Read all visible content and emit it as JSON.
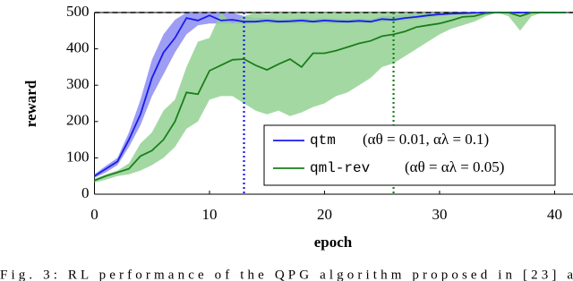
{
  "chart_data": {
    "type": "line",
    "xlabel": "epoch",
    "ylabel": "reward",
    "x": [
      0,
      1,
      2,
      3,
      4,
      5,
      6,
      7,
      8,
      9,
      10,
      11,
      12,
      13,
      14,
      15,
      16,
      17,
      18,
      19,
      20,
      21,
      22,
      23,
      24,
      25,
      26,
      27,
      28,
      29,
      30,
      31,
      32,
      33,
      34,
      35,
      36,
      37,
      38,
      39,
      40,
      41
    ],
    "xlim": [
      0,
      41.6
    ],
    "ylim": [
      0,
      500
    ],
    "xticks": [
      0,
      10,
      20,
      30,
      40
    ],
    "yticks": [
      0,
      100,
      200,
      300,
      400,
      500
    ],
    "hline": 500,
    "series": [
      {
        "name": "qtm",
        "params": "(αθ = 0.01,  αλ = 0.1)",
        "color": "#1a1aee",
        "band_color": "#8c8cf2",
        "vline": 13,
        "values": [
          50,
          70,
          90,
          150,
          220,
          320,
          390,
          430,
          485,
          478,
          492,
          478,
          480,
          475,
          475,
          478,
          475,
          476,
          478,
          475,
          478,
          476,
          475,
          477,
          475,
          482,
          480,
          485,
          488,
          492,
          495,
          497,
          498,
          499,
          500,
          500,
          500,
          500,
          500,
          500,
          500,
          500
        ],
        "band_low": [
          45,
          60,
          80,
          130,
          190,
          270,
          330,
          390,
          440,
          465,
          470,
          470,
          470,
          468,
          470,
          470,
          470,
          470,
          470,
          470,
          470,
          470,
          470,
          472,
          470,
          475,
          475,
          478,
          482,
          486,
          490,
          493,
          495,
          497,
          500,
          500,
          500,
          500,
          500,
          500,
          500,
          500
        ],
        "band_high": [
          55,
          78,
          100,
          170,
          260,
          370,
          440,
          480,
          500,
          500,
          500,
          500,
          500,
          490,
          485,
          485,
          482,
          482,
          485,
          482,
          485,
          483,
          482,
          483,
          482,
          490,
          490,
          495,
          497,
          500,
          500,
          500,
          500,
          500,
          500,
          500,
          500,
          500,
          500,
          500,
          500,
          500
        ]
      },
      {
        "name": "qml-rev",
        "params": "(αθ = αλ = 0.05)",
        "color": "#1a7f1a",
        "band_color": "#93d193",
        "vline": 26,
        "values": [
          38,
          50,
          60,
          70,
          105,
          120,
          150,
          200,
          280,
          275,
          340,
          355,
          370,
          372,
          355,
          342,
          358,
          372,
          350,
          388,
          388,
          395,
          405,
          415,
          422,
          435,
          440,
          448,
          460,
          465,
          470,
          478,
          488,
          490,
          498,
          500,
          500,
          490,
          500,
          500,
          500,
          500
        ],
        "band_low": [
          32,
          40,
          50,
          55,
          65,
          80,
          100,
          130,
          180,
          200,
          260,
          270,
          270,
          250,
          230,
          220,
          230,
          215,
          225,
          240,
          250,
          270,
          280,
          300,
          320,
          350,
          360,
          380,
          400,
          420,
          440,
          455,
          465,
          475,
          490,
          500,
          490,
          450,
          490,
          500,
          500,
          500
        ],
        "band_high": [
          42,
          55,
          65,
          85,
          140,
          170,
          230,
          260,
          350,
          420,
          430,
          500,
          470,
          490,
          500,
          495,
          500,
          500,
          500,
          500,
          500,
          500,
          500,
          500,
          500,
          500,
          500,
          500,
          500,
          500,
          500,
          500,
          500,
          500,
          500,
          500,
          500,
          500,
          500,
          500,
          500,
          500
        ]
      }
    ],
    "caption": "Fig. 3: RL performance of the QPG algorithm proposed in [23] a"
  }
}
